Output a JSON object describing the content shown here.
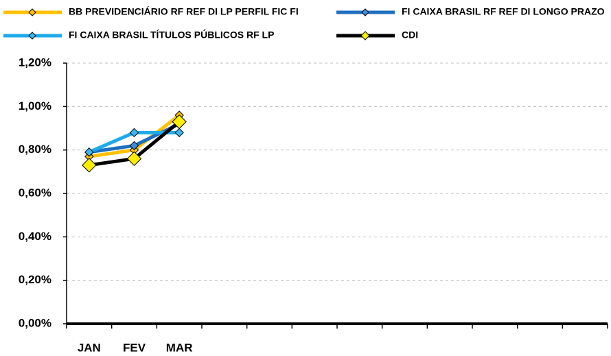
{
  "chart_data": {
    "type": "line",
    "categories": [
      "JAN",
      "FEV",
      "MAR",
      null,
      null,
      null,
      null,
      null,
      null,
      null,
      null,
      null
    ],
    "series": [
      {
        "name": "BB PREVIDENCIÁRIO RF REF DI LP PERFIL FIC FI",
        "color": "#ffc000",
        "marker_color": "#ffc000",
        "values": [
          0.77,
          0.8,
          0.96,
          null,
          null,
          null,
          null,
          null,
          null,
          null,
          null,
          null
        ]
      },
      {
        "name": "FI CAIXA BRASIL RF REF DI LONGO PRAZO",
        "color": "#1f6fbf",
        "marker_color": "#3a8fd8",
        "values": [
          0.79,
          0.82,
          0.92,
          null,
          null,
          null,
          null,
          null,
          null,
          null,
          null,
          null
        ]
      },
      {
        "name": "FI CAIXA BRASIL TÍTULOS PÚBLICOS RF LP",
        "color": "#1eaae8",
        "marker_color": "#39b8ee",
        "values": [
          0.79,
          0.88,
          0.88,
          null,
          null,
          null,
          null,
          null,
          null,
          null,
          null,
          null
        ]
      },
      {
        "name": "CDI",
        "color": "#000000",
        "marker_color": "#ffee00",
        "values": [
          0.73,
          0.76,
          0.93,
          null,
          null,
          null,
          null,
          null,
          null,
          null,
          null,
          null
        ]
      }
    ],
    "ylim": [
      0,
      1.2
    ],
    "yticks": [
      {
        "value": 0,
        "label": "0,00%"
      },
      {
        "value": 0.2,
        "label": "0,20%"
      },
      {
        "value": 0.4,
        "label": "0,40%"
      },
      {
        "value": 0.6,
        "label": "0,60%"
      },
      {
        "value": 0.8,
        "label": "0,80%"
      },
      {
        "value": 1.0,
        "label": "1,00%"
      },
      {
        "value": 1.2,
        "label": "1,20%"
      }
    ],
    "grid": true
  }
}
